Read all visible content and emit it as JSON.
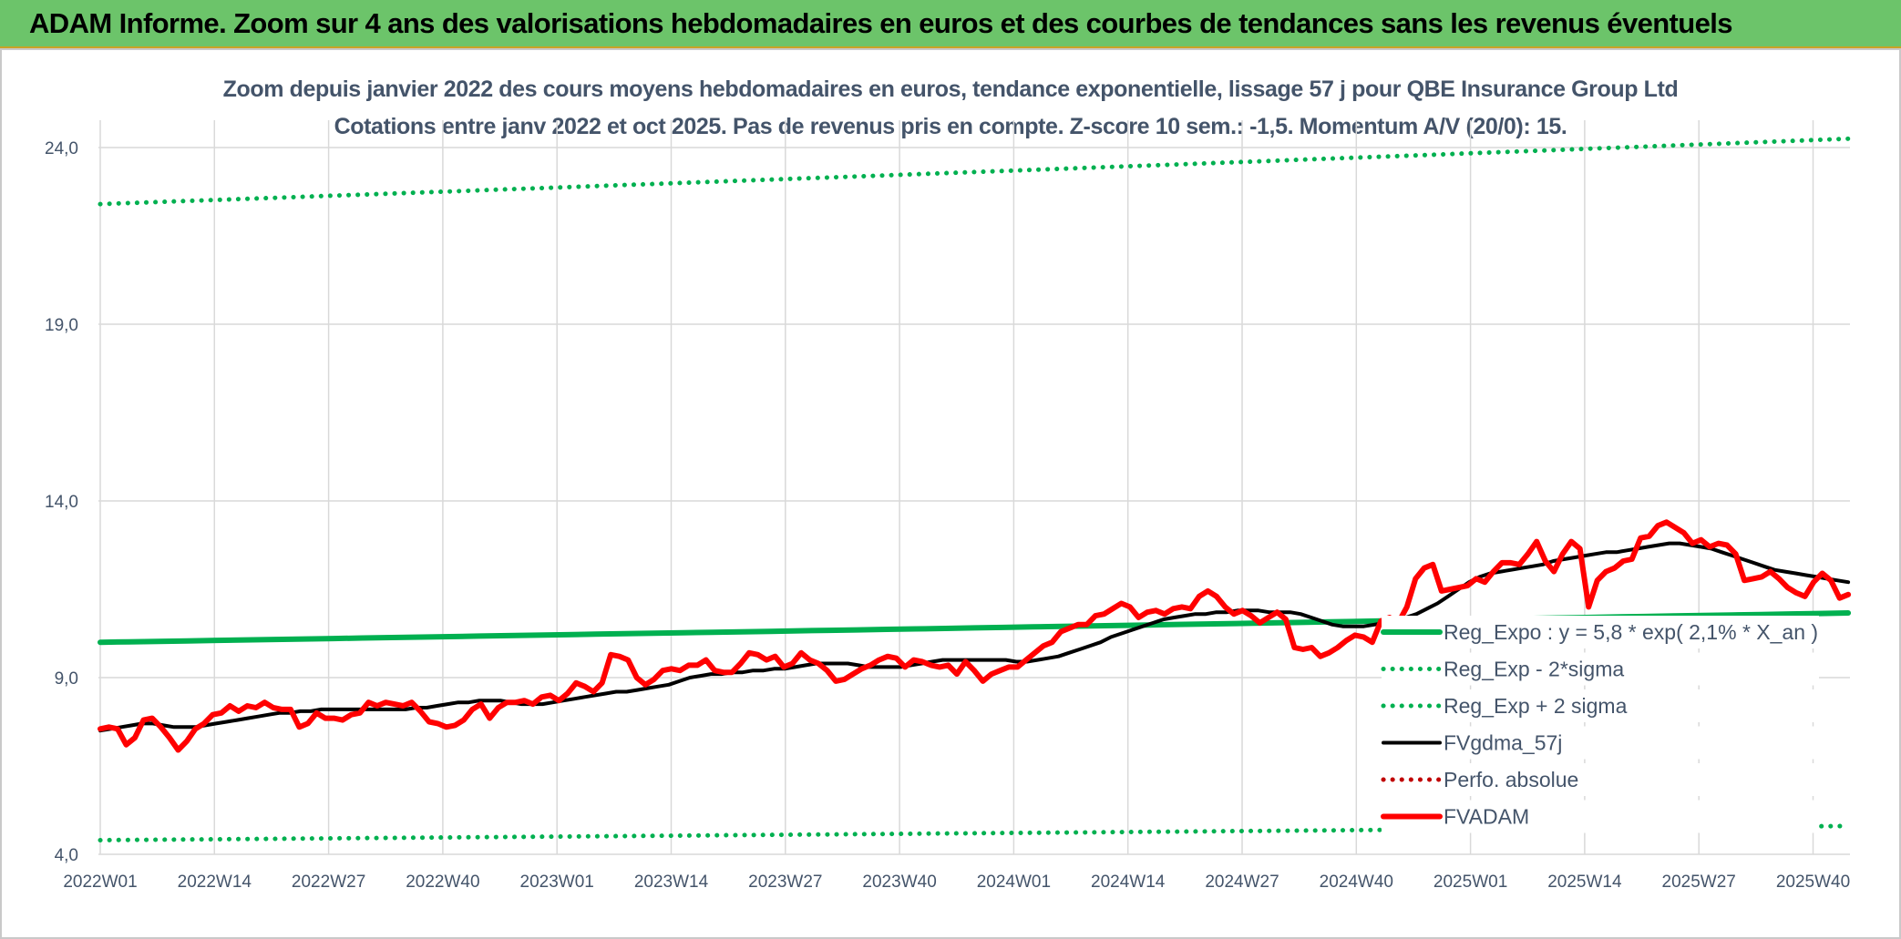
{
  "banner": {
    "title": "ADAM Informe. Zoom sur 4 ans des valorisations hebdomadaires en euros et des courbes de tendances sans les revenus éventuels"
  },
  "colors": {
    "banner_bg": "#6cc46a",
    "trend_green": "#00b050",
    "price_red": "#ff0000",
    "moving_avg_black": "#000000",
    "perfo_red": "#c00000",
    "text": "#44546a",
    "grid": "#d9d9d9"
  },
  "chart_data": {
    "type": "line",
    "title": "Zoom depuis janvier 2022 des cours moyens hebdomadaires en euros, tendance exponentielle, lissage 57 j pour QBE Insurance Group Ltd",
    "subtitle": "Cotations entre janv 2022 et oct 2025. Pas de revenus pris en compte. Z-score 10 sem.: -1,5. Momentum A/V (20/0): 15.",
    "xlabel": "",
    "ylabel": "",
    "ylim": [
      4,
      24
    ],
    "yticks": [
      "4,0",
      "9,0",
      "14,0",
      "19,0",
      "24,0"
    ],
    "xticks": [
      "2022W01",
      "2022W14",
      "2022W27",
      "2022W40",
      "2023W01",
      "2023W14",
      "2023W27",
      "2023W40",
      "2024W01",
      "2024W14",
      "2024W27",
      "2024W40",
      "2025W01",
      "2025W14",
      "2025W27",
      "2025W40"
    ],
    "grid": true,
    "legend_position": "bottom-right",
    "x_weeks": "weekly points from 2022W01 to 2025W43",
    "series": [
      {
        "name": "Reg_Expo : y = 5,8 * exp( 2,1% *  X_an )",
        "style": "solid-thick",
        "color": "#00b050",
        "values": [
          10.0,
          10.83
        ]
      },
      {
        "name": "Reg_Exp - 2*sigma",
        "style": "dotted",
        "color": "#00b050",
        "values": [
          4.4,
          4.8
        ]
      },
      {
        "name": "Reg_Exp + 2 sigma",
        "style": "dotted",
        "color": "#00b050",
        "values": [
          22.4,
          24.25
        ]
      },
      {
        "name": "FVgdma_57j",
        "style": "solid",
        "color": "#000000",
        "values": [
          7.5,
          7.55,
          7.6,
          7.65,
          7.7,
          7.7,
          7.65,
          7.6,
          7.6,
          7.6,
          7.65,
          7.7,
          7.75,
          7.8,
          7.85,
          7.9,
          7.95,
          8.0,
          8.0,
          8.05,
          8.05,
          8.1,
          8.1,
          8.1,
          8.1,
          8.1,
          8.1,
          8.1,
          8.1,
          8.1,
          8.15,
          8.15,
          8.2,
          8.25,
          8.3,
          8.3,
          8.35,
          8.35,
          8.35,
          8.3,
          8.25,
          8.25,
          8.25,
          8.3,
          8.35,
          8.4,
          8.45,
          8.5,
          8.55,
          8.6,
          8.6,
          8.65,
          8.7,
          8.75,
          8.8,
          8.9,
          9.0,
          9.05,
          9.1,
          9.1,
          9.15,
          9.15,
          9.2,
          9.2,
          9.25,
          9.25,
          9.3,
          9.35,
          9.4,
          9.4,
          9.4,
          9.4,
          9.35,
          9.3,
          9.3,
          9.3,
          9.3,
          9.35,
          9.4,
          9.45,
          9.5,
          9.5,
          9.5,
          9.5,
          9.5,
          9.5,
          9.5,
          9.45,
          9.45,
          9.5,
          9.55,
          9.6,
          9.7,
          9.8,
          9.9,
          10.0,
          10.15,
          10.25,
          10.35,
          10.45,
          10.55,
          10.65,
          10.7,
          10.75,
          10.8,
          10.8,
          10.85,
          10.85,
          10.9,
          10.9,
          10.9,
          10.85,
          10.85,
          10.85,
          10.8,
          10.7,
          10.6,
          10.5,
          10.45,
          10.45,
          10.45,
          10.5,
          10.55,
          10.6,
          10.7,
          10.8,
          10.95,
          11.1,
          11.3,
          11.5,
          11.7,
          11.85,
          11.95,
          12.0,
          12.05,
          12.1,
          12.15,
          12.2,
          12.3,
          12.35,
          12.4,
          12.45,
          12.5,
          12.55,
          12.55,
          12.6,
          12.65,
          12.7,
          12.75,
          12.8,
          12.8,
          12.75,
          12.7,
          12.65,
          12.55,
          12.45,
          12.35,
          12.25,
          12.15,
          12.05,
          12.0,
          11.95,
          11.9,
          11.85,
          11.8,
          11.75,
          11.7
        ]
      },
      {
        "name": "Perfo. absolue",
        "style": "dotted",
        "color": "#c00000",
        "values": []
      },
      {
        "name": "FVADAM",
        "style": "solid-thick",
        "color": "#ff0000",
        "values": [
          7.55,
          7.6,
          7.55,
          7.1,
          7.3,
          7.8,
          7.85,
          7.6,
          7.3,
          6.95,
          7.2,
          7.55,
          7.7,
          7.95,
          8.0,
          8.2,
          8.05,
          8.2,
          8.15,
          8.3,
          8.15,
          8.1,
          8.1,
          7.6,
          7.7,
          8.0,
          7.85,
          7.85,
          7.8,
          7.95,
          8.0,
          8.3,
          8.2,
          8.3,
          8.25,
          8.2,
          8.3,
          8.05,
          7.75,
          7.7,
          7.6,
          7.65,
          7.8,
          8.1,
          8.25,
          7.85,
          8.15,
          8.3,
          8.3,
          8.35,
          8.25,
          8.45,
          8.5,
          8.35,
          8.55,
          8.85,
          8.75,
          8.6,
          8.85,
          9.65,
          9.6,
          9.5,
          9.0,
          8.8,
          8.95,
          9.2,
          9.25,
          9.2,
          9.35,
          9.35,
          9.5,
          9.2,
          9.15,
          9.15,
          9.4,
          9.7,
          9.65,
          9.5,
          9.6,
          9.3,
          9.4,
          9.7,
          9.5,
          9.4,
          9.2,
          8.9,
          8.95,
          9.1,
          9.25,
          9.35,
          9.5,
          9.6,
          9.55,
          9.3,
          9.5,
          9.45,
          9.35,
          9.3,
          9.35,
          9.1,
          9.45,
          9.2,
          8.9,
          9.1,
          9.2,
          9.3,
          9.3,
          9.5,
          9.7,
          9.9,
          10.0,
          10.3,
          10.4,
          10.5,
          10.5,
          10.75,
          10.8,
          10.95,
          11.1,
          11.0,
          10.7,
          10.85,
          10.9,
          10.8,
          10.95,
          11.0,
          10.95,
          11.3,
          11.45,
          11.3,
          11.0,
          10.8,
          10.9,
          10.75,
          10.55,
          10.7,
          10.85,
          10.65,
          9.85,
          9.8,
          9.85,
          9.6,
          9.7,
          9.85,
          10.05,
          10.2,
          10.15,
          10.0,
          10.6,
          10.7,
          10.55,
          11.0,
          11.8,
          12.1,
          12.2,
          11.45,
          11.5,
          11.55,
          11.6,
          11.8,
          11.7,
          12.0,
          12.25,
          12.25,
          12.2,
          12.5,
          12.85,
          12.3,
          12.0,
          12.5,
          12.85,
          12.65,
          11.0,
          11.75,
          12.0,
          12.1,
          12.3,
          12.35,
          12.95,
          13.0,
          13.3,
          13.4,
          13.25,
          13.1,
          12.8,
          12.9,
          12.7,
          12.8,
          12.75,
          12.5,
          11.75,
          11.8,
          11.85,
          12.0,
          11.8,
          11.55,
          11.4,
          11.3,
          11.7,
          11.95,
          11.75,
          11.25,
          11.35
        ]
      }
    ]
  }
}
